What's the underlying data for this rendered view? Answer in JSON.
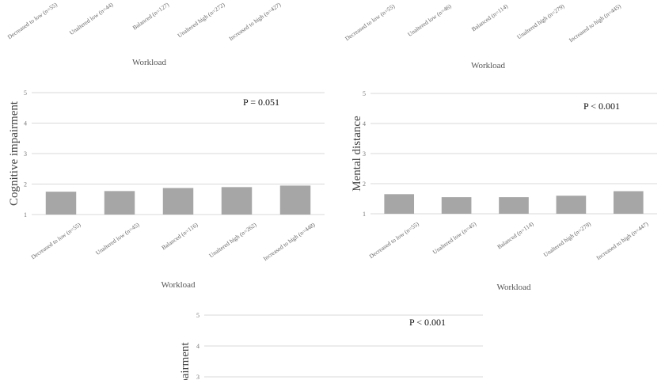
{
  "chart_data": [
    {
      "type": "bar",
      "x_label": "Workload",
      "categories": [
        "Decreased to low (n=55)",
        "Unaltered low (n=44)",
        "Balanced (n=127)",
        "Unaltered high (n=272)",
        "Increased to high (n=427)"
      ]
    },
    {
      "type": "bar",
      "x_label": "Workload",
      "categories": [
        "Decreased to low (n=55)",
        "Unaltered low (n=46)",
        "Balanced (n=114)",
        "Unaltered high (n=279)",
        "Increased to high (n=445)"
      ]
    },
    {
      "type": "bar",
      "y_label": "Cognitive impairment",
      "x_label": "Workload",
      "annotation": "P = 0.051",
      "categories": [
        "Decreased to low (n=55)",
        "Unaltered low (n=45)",
        "Balanced (n=116)",
        "Unaltered high (n=262)",
        "Increased to high (n=448)"
      ],
      "values": [
        1.75,
        1.77,
        1.87,
        1.9,
        1.95
      ],
      "color": "#a6a6a6",
      "ylim": [
        1,
        5
      ],
      "yticks": [
        1,
        2,
        3,
        4,
        5
      ],
      "grid": true
    },
    {
      "type": "bar",
      "y_label": "Mental distance",
      "x_label": "Workload",
      "annotation": "P < 0.001",
      "categories": [
        "Decreased to low (n=55)",
        "Unaltered low (n=45)",
        "Balanced (n=114)",
        "Unaltered high (n=279)",
        "Increased to high (n=447)"
      ],
      "values": [
        1.65,
        1.55,
        1.55,
        1.6,
        1.75
      ],
      "color": "#a6a6a6",
      "ylim": [
        1,
        5
      ],
      "yticks": [
        1,
        2,
        3,
        4,
        5
      ],
      "grid": true
    },
    {
      "type": "bar",
      "y_label": "impairment",
      "annotation": "P < 0.001",
      "ylim": [
        3,
        5
      ],
      "yticks": [
        3,
        4,
        5
      ],
      "grid": true
    }
  ]
}
